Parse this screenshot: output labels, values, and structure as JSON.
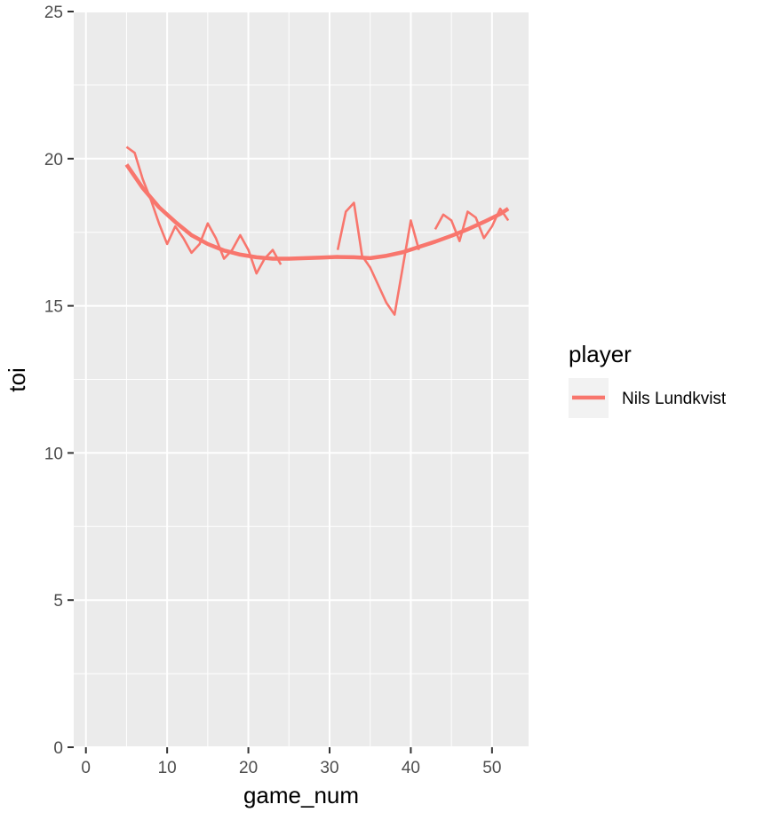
{
  "chart_data": {
    "type": "line",
    "title": "",
    "xlabel": "game_num",
    "ylabel": "toi",
    "xlim": [
      -1.5,
      54.5
    ],
    "ylim": [
      0,
      25
    ],
    "x_ticks": [
      0,
      10,
      20,
      30,
      40,
      50
    ],
    "y_ticks": [
      0,
      5,
      10,
      15,
      20,
      25
    ],
    "grid": true,
    "legend": {
      "title": "player",
      "position": "right",
      "entries": [
        "Nils Lundkvist"
      ]
    },
    "series": [
      {
        "name": "Nils Lundkvist",
        "color": "#F8766D",
        "kind": "raw",
        "segments": [
          [
            [
              5,
              20.4
            ],
            [
              6,
              20.2
            ],
            [
              7,
              19.3
            ],
            [
              8,
              18.6
            ],
            [
              9,
              17.8
            ],
            [
              10,
              17.1
            ],
            [
              11,
              17.7
            ],
            [
              12,
              17.3
            ],
            [
              13,
              16.8
            ],
            [
              14,
              17.1
            ],
            [
              15,
              17.8
            ],
            [
              16,
              17.3
            ],
            [
              17,
              16.6
            ],
            [
              18,
              16.9
            ],
            [
              19,
              17.4
            ],
            [
              20,
              16.9
            ],
            [
              21,
              16.1
            ],
            [
              22,
              16.6
            ],
            [
              23,
              16.9
            ],
            [
              24,
              16.4
            ]
          ],
          [
            [
              31,
              16.9
            ],
            [
              32,
              18.2
            ],
            [
              33,
              18.5
            ],
            [
              34,
              16.7
            ],
            [
              35,
              16.3
            ],
            [
              36,
              15.7
            ],
            [
              37,
              15.1
            ],
            [
              38,
              14.7
            ],
            [
              39,
              16.3
            ],
            [
              40,
              17.9
            ],
            [
              41,
              16.9
            ]
          ],
          [
            [
              43,
              17.6
            ],
            [
              44,
              18.1
            ],
            [
              45,
              17.9
            ],
            [
              46,
              17.2
            ],
            [
              47,
              18.2
            ],
            [
              48,
              18.0
            ],
            [
              49,
              17.3
            ],
            [
              50,
              17.7
            ],
            [
              51,
              18.3
            ],
            [
              52,
              17.9
            ]
          ]
        ]
      },
      {
        "name": "Nils Lundkvist",
        "color": "#F8766D",
        "kind": "smooth",
        "values": [
          [
            5,
            19.8
          ],
          [
            7,
            19.0
          ],
          [
            9,
            18.35
          ],
          [
            11,
            17.85
          ],
          [
            13,
            17.4
          ],
          [
            15,
            17.1
          ],
          [
            17,
            16.88
          ],
          [
            19,
            16.74
          ],
          [
            21,
            16.65
          ],
          [
            23,
            16.6
          ],
          [
            25,
            16.6
          ],
          [
            27,
            16.62
          ],
          [
            29,
            16.64
          ],
          [
            31,
            16.66
          ],
          [
            33,
            16.65
          ],
          [
            35,
            16.62
          ],
          [
            37,
            16.7
          ],
          [
            39,
            16.82
          ],
          [
            41,
            17.0
          ],
          [
            43,
            17.18
          ],
          [
            45,
            17.38
          ],
          [
            47,
            17.6
          ],
          [
            49,
            17.85
          ],
          [
            51,
            18.12
          ],
          [
            52,
            18.3
          ]
        ]
      }
    ]
  }
}
